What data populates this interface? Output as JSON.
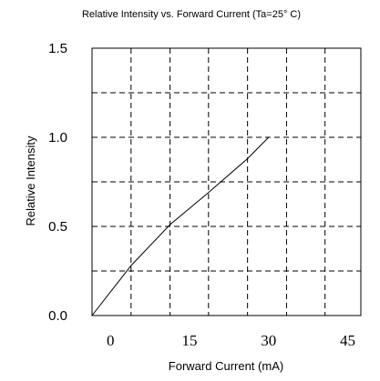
{
  "chart_data": {
    "type": "line",
    "title": "Relative Intensity vs. Forward Current (Ta=25° C)",
    "xlabel": "Forward Current (mA)",
    "ylabel": "Relative Intensity",
    "xlim": [
      -3.5,
      47.5
    ],
    "ylim": [
      0,
      1.5
    ],
    "x_ticks": [
      0,
      15,
      30,
      45
    ],
    "x_tick_labels": [
      "0",
      "15",
      "30",
      "45"
    ],
    "y_ticks": [
      0,
      0.5,
      1.0,
      1.5
    ],
    "y_tick_labels": [
      "0.0",
      "0.5",
      "1.0",
      "1.5"
    ],
    "x_grid": [
      3.9,
      11.3,
      18.6,
      26.0,
      33.4,
      40.7
    ],
    "y_grid": [
      0.25,
      0.5,
      0.75,
      1.0,
      1.25
    ],
    "grid": true,
    "legend": false,
    "series": [
      {
        "x": [
          -3.5,
          3.9,
          11.3,
          18.6,
          26.0,
          30.0
        ],
        "y": [
          0,
          0.28,
          0.51,
          0.69,
          0.88,
          1.0
        ]
      }
    ]
  }
}
